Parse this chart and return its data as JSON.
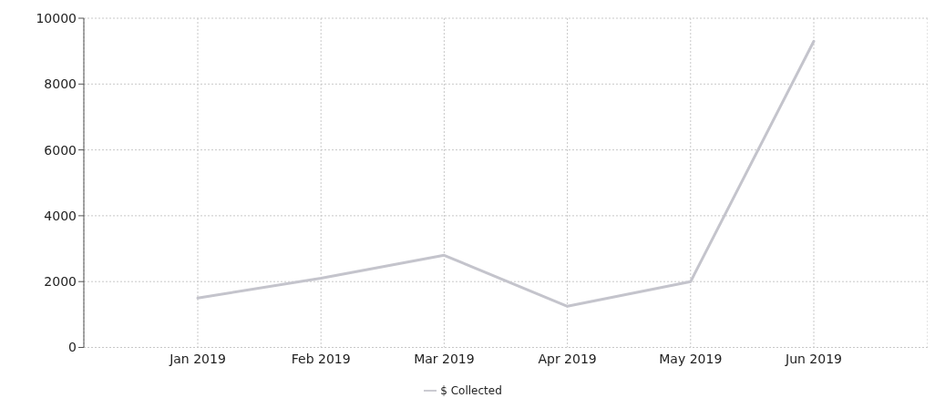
{
  "chart_data": {
    "type": "line",
    "categories": [
      "Jan 2019",
      "Feb 2019",
      "Mar 2019",
      "Apr 2019",
      "May 2019",
      "Jun 2019"
    ],
    "series": [
      {
        "name": "$ Collected",
        "color": "#c4c4cc",
        "values": [
          1500,
          2100,
          2800,
          1250,
          2000,
          9300
        ]
      }
    ],
    "ylim": [
      0,
      10000
    ],
    "yticks": [
      0,
      2000,
      4000,
      6000,
      8000,
      10000
    ],
    "grid": true,
    "legend": "bottom",
    "marker": "none",
    "line_style": "solid"
  }
}
